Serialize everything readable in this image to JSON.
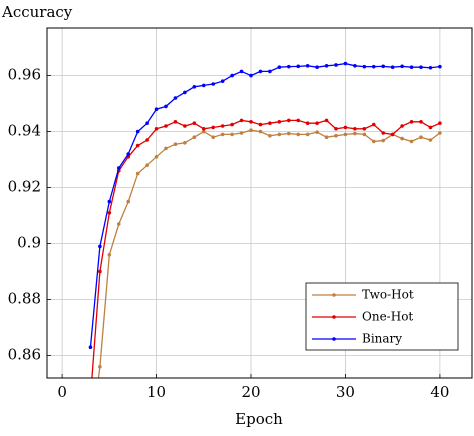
{
  "chart_data": {
    "type": "line",
    "ylabel": "Accuracy",
    "xlabel": "Epoch",
    "x": [
      3,
      4,
      5,
      6,
      7,
      8,
      9,
      10,
      11,
      12,
      13,
      14,
      15,
      16,
      17,
      18,
      19,
      20,
      21,
      22,
      23,
      24,
      25,
      26,
      27,
      28,
      29,
      30,
      31,
      32,
      33,
      34,
      35,
      36,
      37,
      38,
      39,
      40
    ],
    "series": [
      {
        "name": "Two-Hot",
        "color": "#bf8040",
        "values": [
          0.83,
          0.856,
          0.896,
          0.907,
          0.915,
          0.925,
          0.928,
          0.931,
          0.934,
          0.9355,
          0.936,
          0.938,
          0.94,
          0.938,
          0.939,
          0.939,
          0.9395,
          0.9405,
          0.94,
          0.9385,
          0.939,
          0.9393,
          0.939,
          0.939,
          0.9398,
          0.938,
          0.9385,
          0.939,
          0.9393,
          0.939,
          0.9365,
          0.9368,
          0.939,
          0.9375,
          0.9365,
          0.938,
          0.937,
          0.9395
        ]
      },
      {
        "name": "One-Hot",
        "color": "#e00000",
        "values": [
          0.845,
          0.89,
          0.911,
          0.926,
          0.931,
          0.935,
          0.937,
          0.941,
          0.942,
          0.9435,
          0.942,
          0.943,
          0.941,
          0.9415,
          0.942,
          0.9425,
          0.944,
          0.9435,
          0.9425,
          0.943,
          0.9435,
          0.944,
          0.944,
          0.943,
          0.943,
          0.944,
          0.941,
          0.9415,
          0.941,
          0.941,
          0.9425,
          0.9395,
          0.939,
          0.942,
          0.9435,
          0.9435,
          0.9415,
          0.943
        ]
      },
      {
        "name": "Binary",
        "color": "#0000ff",
        "values": [
          0.863,
          0.899,
          0.915,
          0.927,
          0.932,
          0.94,
          0.943,
          0.948,
          0.949,
          0.952,
          0.954,
          0.956,
          0.9565,
          0.957,
          0.958,
          0.96,
          0.9615,
          0.96,
          0.9615,
          0.9615,
          0.963,
          0.9632,
          0.9633,
          0.9635,
          0.963,
          0.9635,
          0.9638,
          0.9643,
          0.9635,
          0.9632,
          0.9632,
          0.9633,
          0.963,
          0.9633,
          0.963,
          0.963,
          0.9628,
          0.9632
        ]
      }
    ],
    "xlim": [
      -1.6,
      43.4
    ],
    "xticks": [
      0,
      10,
      20,
      30,
      40
    ],
    "ylim": [
      0.852,
      0.977
    ],
    "yticks": [
      0.86,
      0.88,
      0.9,
      0.92,
      0.94,
      0.96
    ],
    "grid": true,
    "legend": "lower right"
  }
}
